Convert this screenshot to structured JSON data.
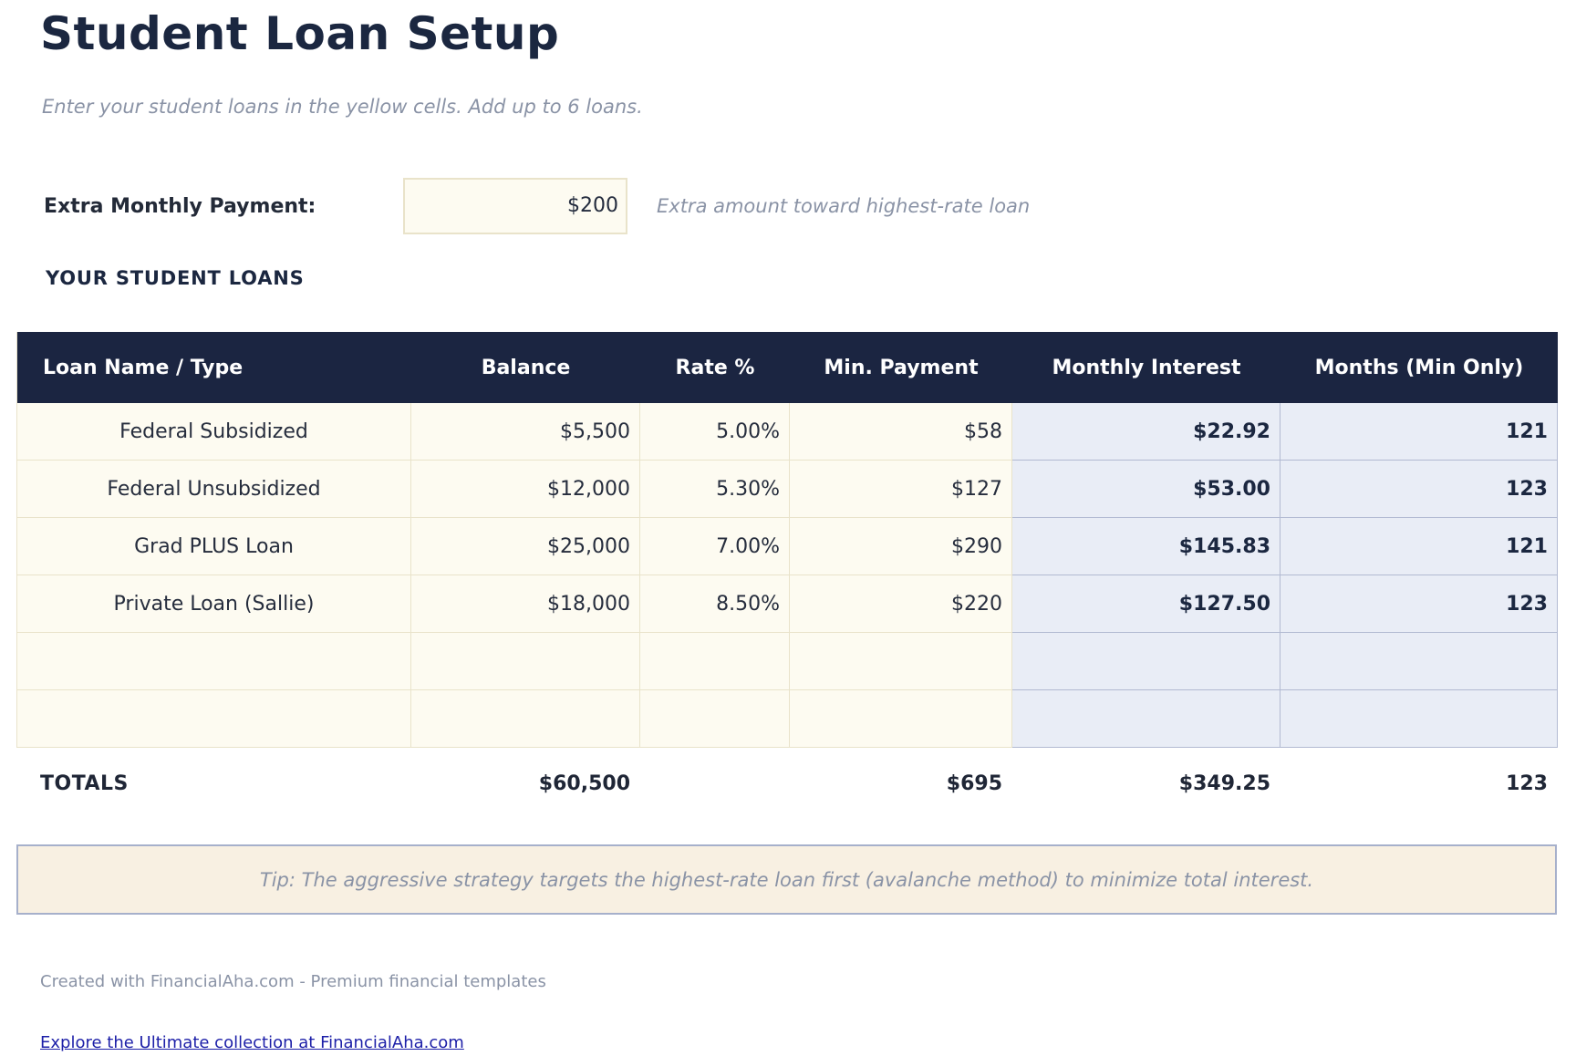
{
  "page": {
    "title": "Student Loan Setup",
    "subtitle": "Enter your student loans in the yellow cells. Add up to 6 loans."
  },
  "extra_payment": {
    "label": "Extra Monthly Payment:",
    "value": "$200",
    "note": "Extra amount toward highest-rate loan"
  },
  "loans_section": {
    "heading": "YOUR STUDENT LOANS",
    "columns": [
      "Loan Name / Type",
      "Balance",
      "Rate %",
      "Min. Payment",
      "Monthly Interest",
      "Months (Min Only)"
    ],
    "rows": [
      {
        "name": "Federal Subsidized",
        "balance": "$5,500",
        "rate": "5.00%",
        "min_payment": "$58",
        "monthly_interest": "$22.92",
        "months": "121"
      },
      {
        "name": "Federal Unsubsidized",
        "balance": "$12,000",
        "rate": "5.30%",
        "min_payment": "$127",
        "monthly_interest": "$53.00",
        "months": "123"
      },
      {
        "name": "Grad PLUS Loan",
        "balance": "$25,000",
        "rate": "7.00%",
        "min_payment": "$290",
        "monthly_interest": "$145.83",
        "months": "121"
      },
      {
        "name": "Private Loan (Sallie)",
        "balance": "$18,000",
        "rate": "8.50%",
        "min_payment": "$220",
        "monthly_interest": "$127.50",
        "months": "123"
      },
      {
        "name": "",
        "balance": "",
        "rate": "",
        "min_payment": "",
        "monthly_interest": "",
        "months": ""
      },
      {
        "name": "",
        "balance": "",
        "rate": "",
        "min_payment": "",
        "monthly_interest": "",
        "months": ""
      }
    ],
    "totals": {
      "label": "TOTALS",
      "balance": "$60,500",
      "rate": "",
      "min_payment": "$695",
      "monthly_interest": "$349.25",
      "months": "123"
    }
  },
  "tip": "Tip: The aggressive strategy targets the highest-rate loan first (avalanche method) to minimize total interest.",
  "footer": {
    "credit": "Created with FinancialAha.com - Premium financial templates",
    "link": "Explore the Ultimate collection at FinancialAha.com"
  },
  "colors": {
    "header_navy": "#1b2541",
    "title_navy": "#1b2740",
    "input_cell_bg": "#fdfbf1",
    "input_cell_border": "#e9e3ca",
    "calc_cell_bg": "#e9edf6",
    "calc_cell_border": "#b2bad2",
    "tip_bg": "#f8f0e2",
    "tip_border": "#a6b0cb",
    "muted_text": "#8a93a6",
    "link_blue": "#1c1fa8"
  }
}
